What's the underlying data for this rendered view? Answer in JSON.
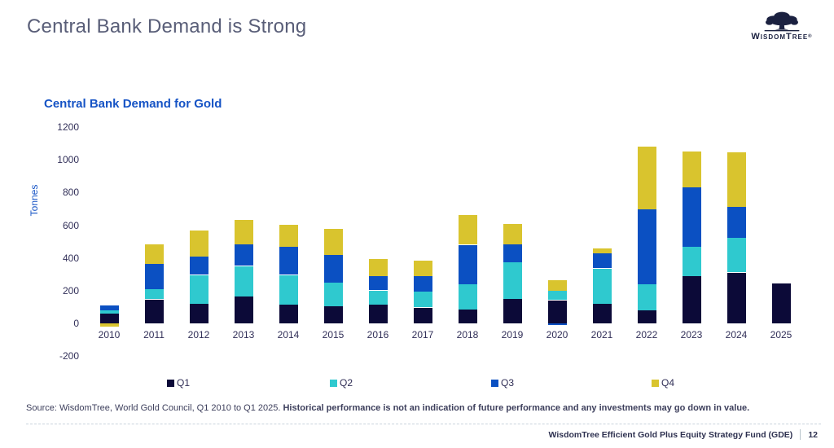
{
  "header": {
    "title": "Central Bank Demand is Strong",
    "logo_text": "WisdomTree",
    "logo_reg": "®"
  },
  "chart_data": {
    "type": "bar",
    "stacked": true,
    "title": "Central Bank Demand for Gold",
    "ylabel": "Tonnes",
    "ylim": [
      -200,
      1200
    ],
    "y_ticks": [
      1200,
      1000,
      800,
      600,
      400,
      200,
      0,
      -200
    ],
    "grid": false,
    "legend_position": "bottom",
    "categories": [
      "2010",
      "2011",
      "2012",
      "2013",
      "2014",
      "2015",
      "2016",
      "2017",
      "2018",
      "2019",
      "2020",
      "2021",
      "2022",
      "2023",
      "2024",
      "2025"
    ],
    "series": [
      {
        "name": "Q1",
        "color": "#0c0a38",
        "values": [
          58,
          145,
          120,
          168,
          118,
          105,
          115,
          96,
          88,
          148,
          140,
          118,
          80,
          290,
          310,
          244
        ]
      },
      {
        "name": "Q2",
        "color": "#2fc9cf",
        "values": [
          20,
          62,
          175,
          183,
          178,
          146,
          86,
          97,
          153,
          228,
          62,
          216,
          158,
          178,
          211,
          null
        ]
      },
      {
        "name": "Q3",
        "color": "#0b50c2",
        "values": [
          30,
          155,
          117,
          130,
          175,
          167,
          87,
          96,
          239,
          108,
          -10,
          92,
          458,
          364,
          189,
          null
        ]
      },
      {
        "name": "Q4",
        "color": "#d9c42e",
        "values": [
          -22,
          119,
          158,
          150,
          133,
          161,
          105,
          95,
          180,
          124,
          64,
          30,
          385,
          221,
          334,
          null
        ]
      }
    ]
  },
  "footer": {
    "source_normal": "Source: WisdomTree, World Gold Council, Q1 2010 to Q1 2025. ",
    "source_bold": "Historical performance is not an indication of future performance and any investments may go down in value.",
    "fund_name": "WisdomTree Efficient Gold Plus Equity Strategy Fund (GDE)",
    "page_number": "12"
  }
}
